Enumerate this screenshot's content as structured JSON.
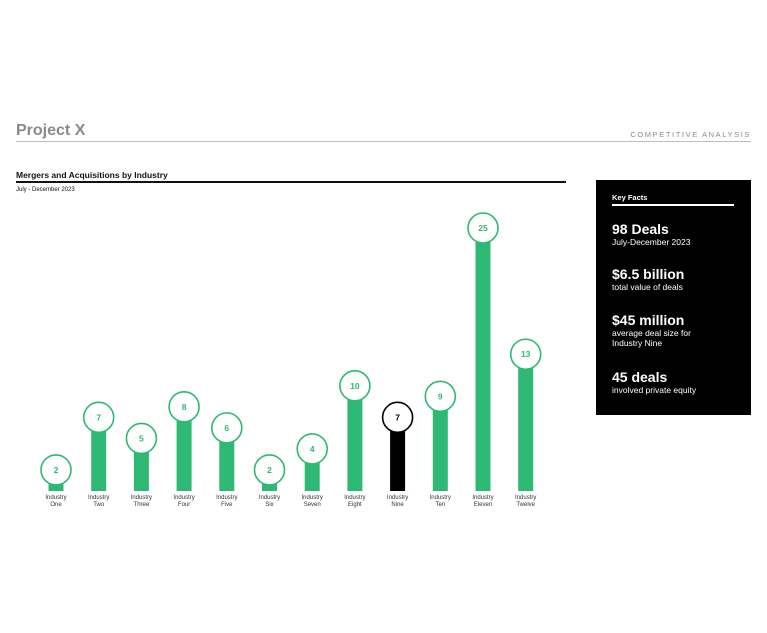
{
  "header": {
    "title": "Project X",
    "subtitle": "COMPETITIVE ANALYSIS"
  },
  "chart_data": {
    "type": "bar",
    "title": "Mergers and Acquisitions by Industry",
    "subtitle": "July - December 2023",
    "categories": [
      [
        "Industry",
        "One"
      ],
      [
        "Industry",
        "Two"
      ],
      [
        "Industry",
        "Three"
      ],
      [
        "Industry",
        "Four"
      ],
      [
        "Industry",
        "Five"
      ],
      [
        "Industry",
        "Six"
      ],
      [
        "Industry",
        "Seven"
      ],
      [
        "Industry",
        "Eight"
      ],
      [
        "Industry",
        "Nine"
      ],
      [
        "Industry",
        "Ten"
      ],
      [
        "Industry",
        "Eleven"
      ],
      [
        "Industry",
        "Twelve"
      ]
    ],
    "values": [
      2,
      7,
      5,
      8,
      6,
      2,
      4,
      10,
      7,
      9,
      25,
      13
    ],
    "highlight_index": 8,
    "colors": {
      "bar": "#2db974",
      "highlight": "#000000",
      "label_text": "#2db974",
      "highlight_text": "#000000"
    },
    "ylim": [
      0,
      25
    ]
  },
  "facts": {
    "heading": "Key Facts",
    "items": [
      {
        "value": "98 Deals",
        "desc": [
          "July-December 2023"
        ]
      },
      {
        "value": "$6.5 billion",
        "desc": [
          "total value of deals"
        ]
      },
      {
        "value": "$45 million",
        "desc": [
          "average deal size for",
          "Industry Nine"
        ]
      },
      {
        "value": "45 deals",
        "desc": [
          "involved private equity"
        ]
      }
    ]
  }
}
